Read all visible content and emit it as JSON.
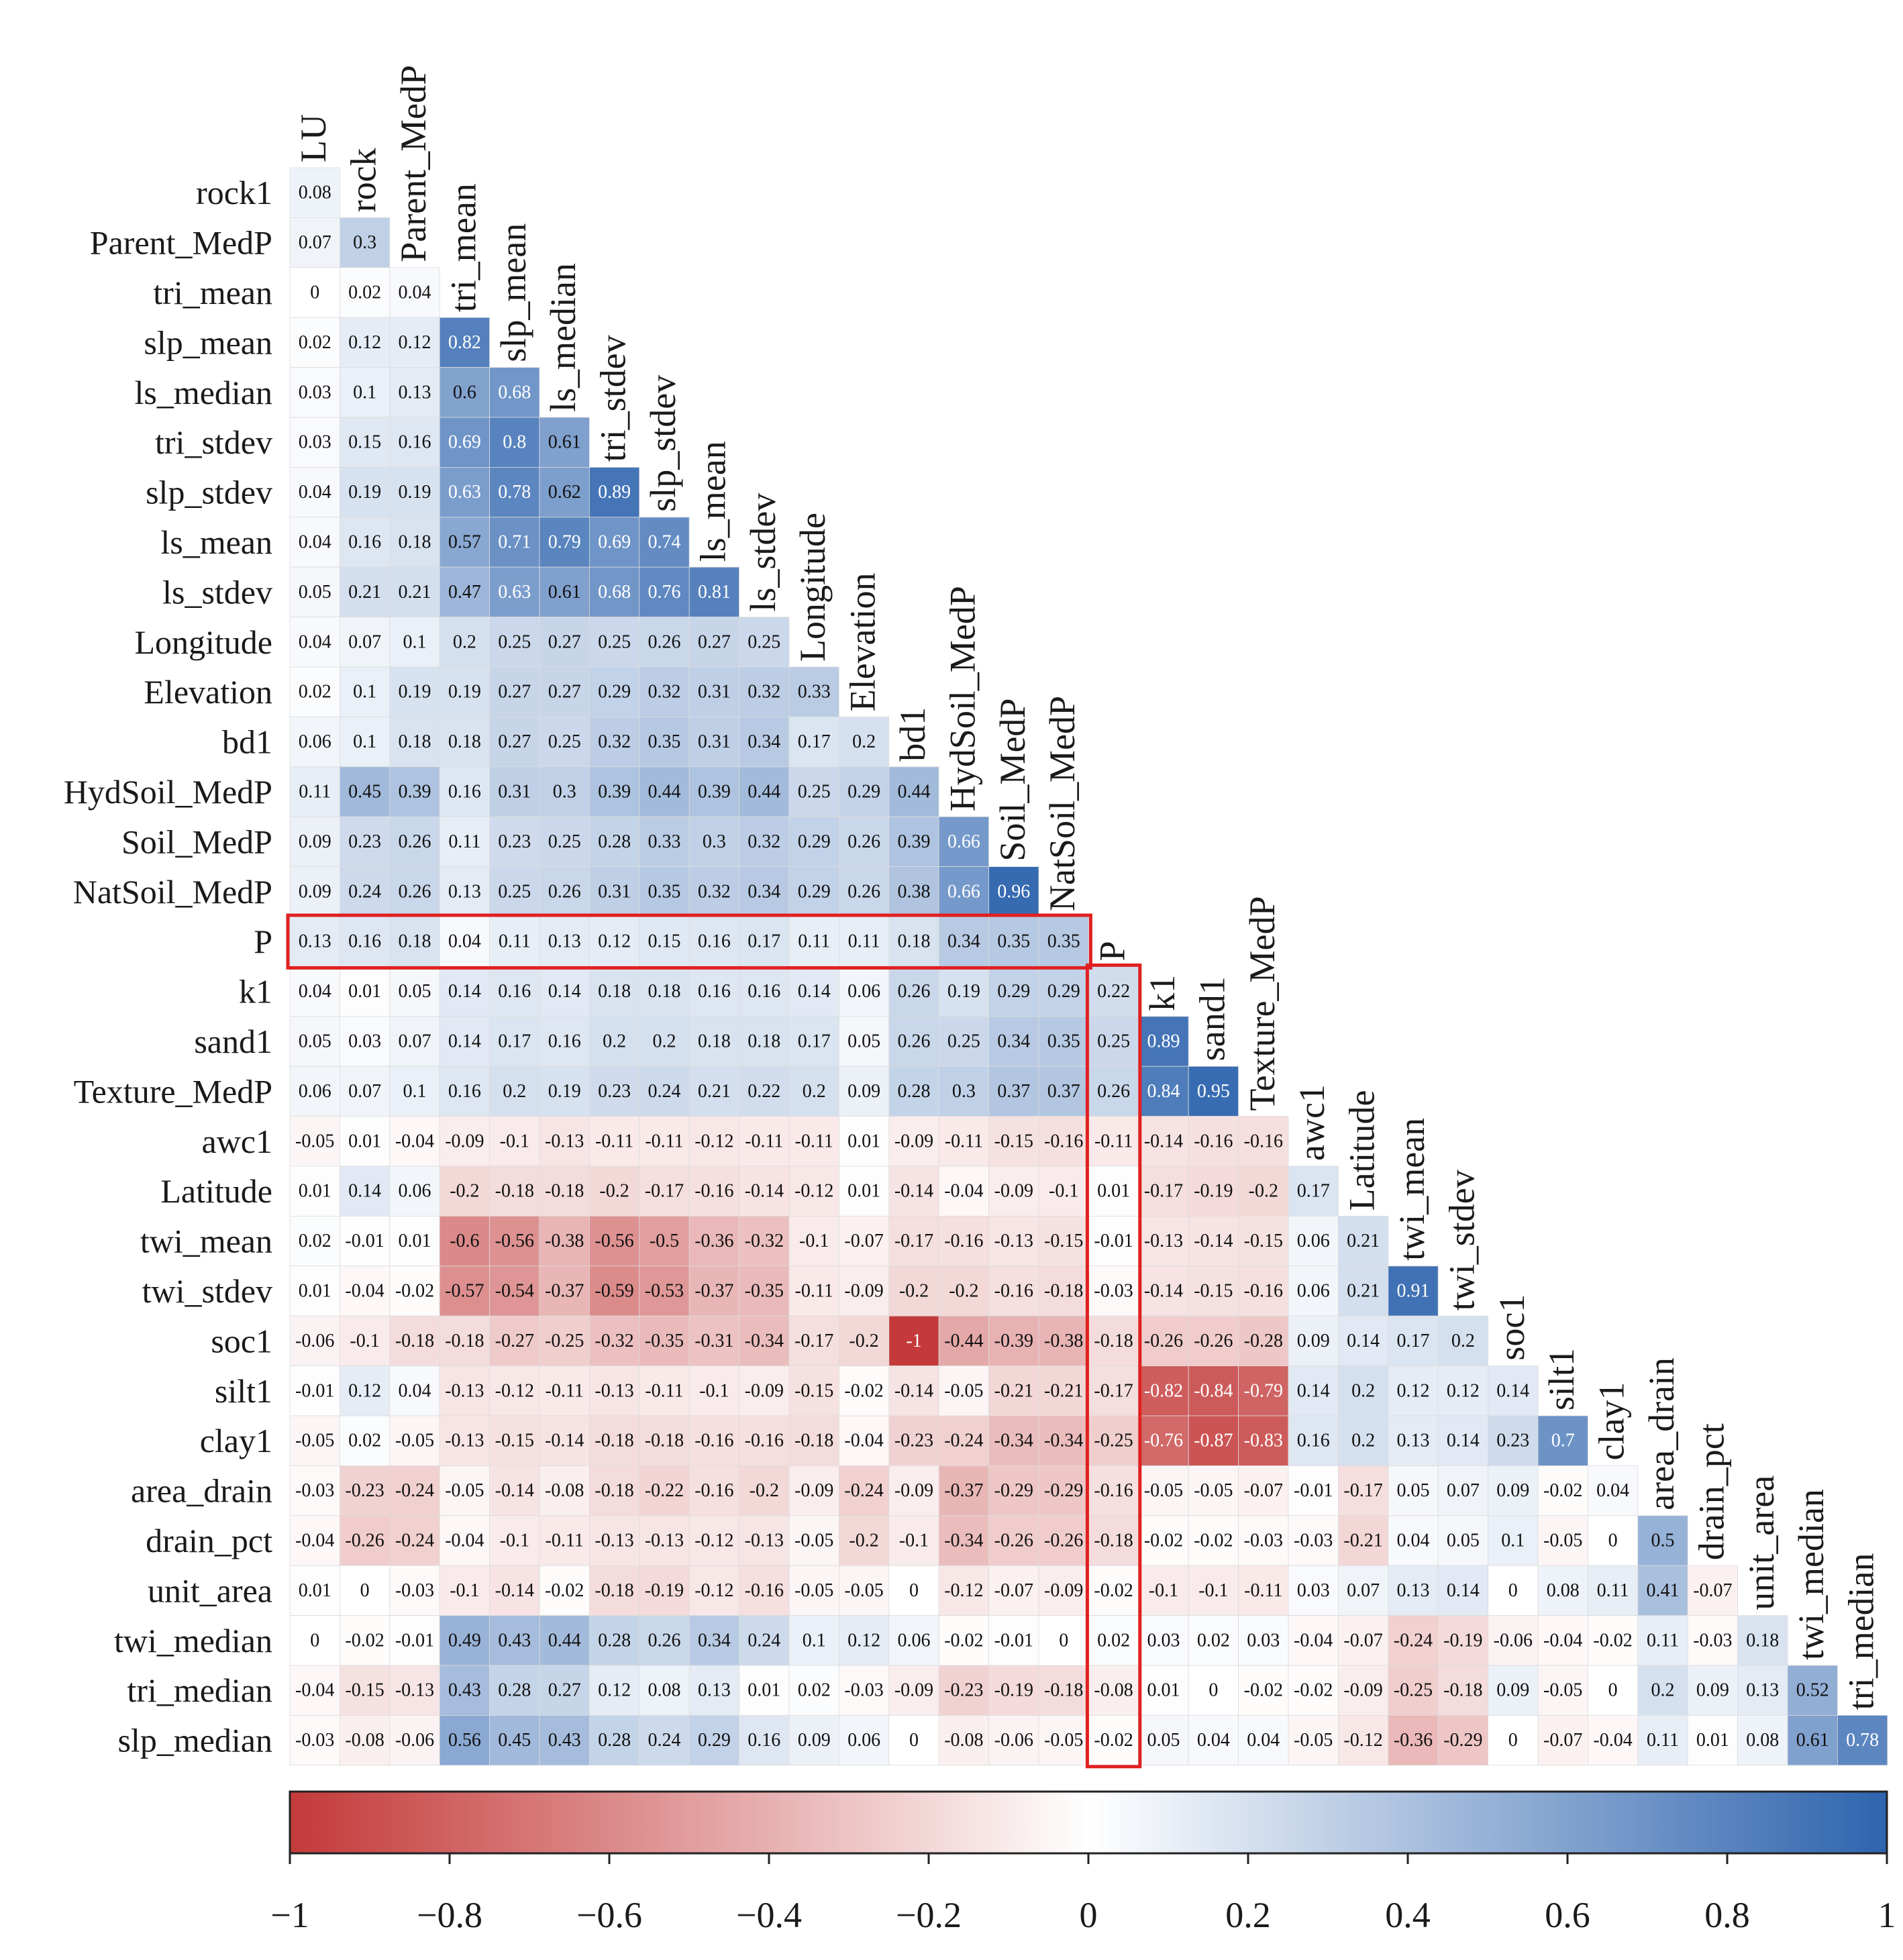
{
  "chart_data": {
    "type": "heatmap",
    "title": "",
    "variables": [
      "LU",
      "rock",
      "Parent_MedP",
      "tri_mean",
      "slp_mean",
      "ls_median",
      "tri_stdev",
      "slp_stdev",
      "ls_mean",
      "ls_stdev",
      "Longitude",
      "Elevation",
      "bd1",
      "HydSoil_MedP",
      "Soil_MedP",
      "NatSoil_MedP",
      "P",
      "k1",
      "sand1",
      "Texture_MedP",
      "awc1",
      "Latitude",
      "twi_mean",
      "twi_stdev",
      "soc1",
      "silt1",
      "clay1",
      "area_drain",
      "drain_pct",
      "unit_area",
      "twi_median",
      "tri_median"
    ],
    "row_labels": [
      "rock1",
      "Parent_MedP",
      "tri_mean",
      "slp_mean",
      "ls_median",
      "tri_stdev",
      "slp_stdev",
      "ls_mean",
      "ls_stdev",
      "Longitude",
      "Elevation",
      "bd1",
      "HydSoil_MedP",
      "Soil_MedP",
      "NatSoil_MedP",
      "P",
      "k1",
      "sand1",
      "Texture_MedP",
      "awc1",
      "Latitude",
      "twi_mean",
      "twi_stdev",
      "soc1",
      "silt1",
      "clay1",
      "area_drain",
      "drain_pct",
      "unit_area",
      "twi_median",
      "tri_median",
      "slp_median"
    ],
    "values": [
      [
        0.08
      ],
      [
        0.07,
        0.3
      ],
      [
        0,
        0.02,
        0.04
      ],
      [
        0.02,
        0.12,
        0.12,
        0.82
      ],
      [
        0.03,
        0.1,
        0.13,
        0.6,
        0.68
      ],
      [
        0.03,
        0.15,
        0.16,
        0.69,
        0.8,
        0.61
      ],
      [
        0.04,
        0.19,
        0.19,
        0.63,
        0.78,
        0.62,
        0.89
      ],
      [
        0.04,
        0.16,
        0.18,
        0.57,
        0.71,
        0.79,
        0.69,
        0.74
      ],
      [
        0.05,
        0.21,
        0.21,
        0.47,
        0.63,
        0.61,
        0.68,
        0.76,
        0.81
      ],
      [
        0.04,
        0.07,
        0.1,
        0.2,
        0.25,
        0.27,
        0.25,
        0.26,
        0.27,
        0.25
      ],
      [
        0.02,
        0.1,
        0.19,
        0.19,
        0.27,
        0.27,
        0.29,
        0.32,
        0.31,
        0.32,
        0.33
      ],
      [
        0.06,
        0.1,
        0.18,
        0.18,
        0.27,
        0.25,
        0.32,
        0.35,
        0.31,
        0.34,
        0.17,
        0.2
      ],
      [
        0.11,
        0.45,
        0.39,
        0.16,
        0.31,
        0.3,
        0.39,
        0.44,
        0.39,
        0.44,
        0.25,
        0.29,
        0.44
      ],
      [
        0.09,
        0.23,
        0.26,
        0.11,
        0.23,
        0.25,
        0.28,
        0.33,
        0.3,
        0.32,
        0.29,
        0.26,
        0.39,
        0.66
      ],
      [
        0.09,
        0.24,
        0.26,
        0.13,
        0.25,
        0.26,
        0.31,
        0.35,
        0.32,
        0.34,
        0.29,
        0.26,
        0.38,
        0.66,
        0.96
      ],
      [
        0.13,
        0.16,
        0.18,
        0.04,
        0.11,
        0.13,
        0.12,
        0.15,
        0.16,
        0.17,
        0.11,
        0.11,
        0.18,
        0.34,
        0.35,
        0.35
      ],
      [
        0.04,
        0.01,
        0.05,
        0.14,
        0.16,
        0.14,
        0.18,
        0.18,
        0.16,
        0.16,
        0.14,
        0.06,
        0.26,
        0.19,
        0.29,
        0.29,
        0.22
      ],
      [
        0.05,
        0.03,
        0.07,
        0.14,
        0.17,
        0.16,
        0.2,
        0.2,
        0.18,
        0.18,
        0.17,
        0.05,
        0.26,
        0.25,
        0.34,
        0.35,
        0.25,
        0.89
      ],
      [
        0.06,
        0.07,
        0.1,
        0.16,
        0.2,
        0.19,
        0.23,
        0.24,
        0.21,
        0.22,
        0.2,
        0.09,
        0.28,
        0.3,
        0.37,
        0.37,
        0.26,
        0.84,
        0.95
      ],
      [
        -0.05,
        0.01,
        -0.04,
        -0.09,
        -0.1,
        -0.13,
        -0.11,
        -0.11,
        -0.12,
        -0.11,
        -0.11,
        0.01,
        -0.09,
        -0.11,
        -0.15,
        -0.16,
        -0.11,
        -0.14,
        -0.16,
        -0.16
      ],
      [
        0.01,
        0.14,
        0.06,
        -0.2,
        -0.18,
        -0.18,
        -0.2,
        -0.17,
        -0.16,
        -0.14,
        -0.12,
        0.01,
        -0.14,
        -0.04,
        -0.09,
        -0.1,
        0.01,
        -0.17,
        -0.19,
        -0.2,
        0.17
      ],
      [
        0.02,
        -0.01,
        0.01,
        -0.6,
        -0.56,
        -0.38,
        -0.56,
        -0.5,
        -0.36,
        -0.32,
        -0.1,
        -0.07,
        -0.17,
        -0.16,
        -0.13,
        -0.15,
        -0.01,
        -0.13,
        -0.14,
        -0.15,
        0.06,
        0.21
      ],
      [
        0.01,
        -0.04,
        -0.02,
        -0.57,
        -0.54,
        -0.37,
        -0.59,
        -0.53,
        -0.37,
        -0.35,
        -0.11,
        -0.09,
        -0.2,
        -0.2,
        -0.16,
        -0.18,
        -0.03,
        -0.14,
        -0.15,
        -0.16,
        0.06,
        0.21,
        0.91
      ],
      [
        -0.06,
        -0.1,
        -0.18,
        -0.18,
        -0.27,
        -0.25,
        -0.32,
        -0.35,
        -0.31,
        -0.34,
        -0.17,
        -0.2,
        -1,
        -0.44,
        -0.39,
        -0.38,
        -0.18,
        -0.26,
        -0.26,
        -0.28,
        0.09,
        0.14,
        0.17,
        0.2
      ],
      [
        -0.01,
        0.12,
        0.04,
        -0.13,
        -0.12,
        -0.11,
        -0.13,
        -0.11,
        -0.1,
        -0.09,
        -0.15,
        -0.02,
        -0.14,
        -0.05,
        -0.21,
        -0.21,
        -0.17,
        -0.82,
        -0.84,
        -0.79,
        0.14,
        0.2,
        0.12,
        0.12,
        0.14
      ],
      [
        -0.05,
        0.02,
        -0.05,
        -0.13,
        -0.15,
        -0.14,
        -0.18,
        -0.18,
        -0.16,
        -0.16,
        -0.18,
        -0.04,
        -0.23,
        -0.24,
        -0.34,
        -0.34,
        -0.25,
        -0.76,
        -0.87,
        -0.83,
        0.16,
        0.2,
        0.13,
        0.14,
        0.23,
        0.7
      ],
      [
        -0.03,
        -0.23,
        -0.24,
        -0.05,
        -0.14,
        -0.08,
        -0.18,
        -0.22,
        -0.16,
        -0.2,
        -0.09,
        -0.24,
        -0.09,
        -0.37,
        -0.29,
        -0.29,
        -0.16,
        -0.05,
        -0.05,
        -0.07,
        -0.01,
        -0.17,
        0.05,
        0.07,
        0.09,
        -0.02,
        0.04
      ],
      [
        -0.04,
        -0.26,
        -0.24,
        -0.04,
        -0.1,
        -0.11,
        -0.13,
        -0.13,
        -0.12,
        -0.13,
        -0.05,
        -0.2,
        -0.1,
        -0.34,
        -0.26,
        -0.26,
        -0.18,
        -0.02,
        -0.02,
        -0.03,
        -0.03,
        -0.21,
        0.04,
        0.05,
        0.1,
        -0.05,
        0,
        0.5
      ],
      [
        0.01,
        0,
        -0.03,
        -0.1,
        -0.14,
        -0.02,
        -0.18,
        -0.19,
        -0.12,
        -0.16,
        -0.05,
        -0.05,
        0,
        -0.12,
        -0.07,
        -0.09,
        -0.02,
        -0.1,
        -0.1,
        -0.11,
        0.03,
        0.07,
        0.13,
        0.14,
        0,
        0.08,
        0.11,
        0.41,
        -0.07
      ],
      [
        0,
        -0.02,
        -0.01,
        0.49,
        0.43,
        0.44,
        0.28,
        0.26,
        0.34,
        0.24,
        0.1,
        0.12,
        0.06,
        -0.02,
        -0.01,
        0,
        0.02,
        0.03,
        0.02,
        0.03,
        -0.04,
        -0.07,
        -0.24,
        -0.19,
        -0.06,
        -0.04,
        -0.02,
        0.11,
        -0.03,
        0.18
      ],
      [
        -0.04,
        -0.15,
        -0.13,
        0.43,
        0.28,
        0.27,
        0.12,
        0.08,
        0.13,
        0.01,
        0.02,
        -0.03,
        -0.09,
        -0.23,
        -0.19,
        -0.18,
        -0.08,
        0.01,
        0,
        -0.02,
        -0.02,
        -0.09,
        -0.25,
        -0.18,
        0.09,
        -0.05,
        0,
        0.2,
        0.09,
        0.13,
        0.52
      ],
      [
        -0.03,
        -0.08,
        -0.06,
        0.56,
        0.45,
        0.43,
        0.28,
        0.24,
        0.29,
        0.16,
        0.09,
        0.06,
        0,
        -0.08,
        -0.06,
        -0.05,
        -0.02,
        0.05,
        0.04,
        0.04,
        -0.05,
        -0.12,
        -0.36,
        -0.29,
        0,
        -0.07,
        -0.04,
        0.11,
        0.01,
        0.08,
        0.61,
        0.78
      ]
    ],
    "colorbar": {
      "range": [
        -1,
        1
      ],
      "ticks": [
        -1,
        -0.8,
        -0.6,
        -0.4,
        -0.2,
        0,
        0.2,
        0.4,
        0.6,
        0.8,
        1
      ],
      "tick_labels": [
        "−1",
        "−0.8",
        "−0.6",
        "−0.4",
        "−0.2",
        "0",
        "0.2",
        "0.4",
        "0.6",
        "0.8",
        "1"
      ],
      "colors": {
        "negative": "#c43a3a",
        "zero": "#ffffff",
        "positive": "#2e64ae"
      }
    },
    "highlight": {
      "color": "#e02020",
      "row_variable": "P",
      "column_variable": "P"
    }
  }
}
